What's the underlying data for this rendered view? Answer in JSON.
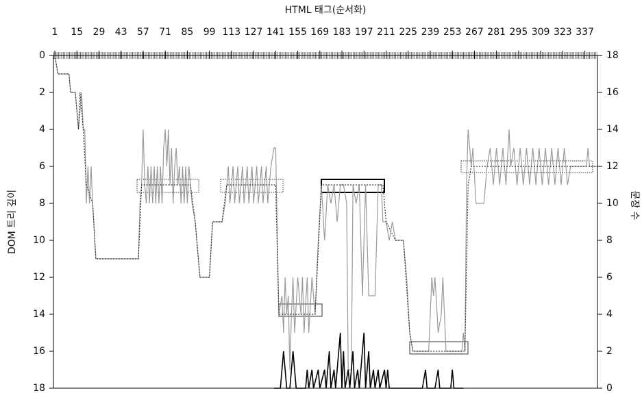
{
  "chart_data": {
    "type": "line",
    "title": "HTML 태그(순서화)",
    "y_label": "DOM 트리 깊이",
    "y2_label": "문장 수",
    "xlim": [
      1,
      345
    ],
    "xticks": [
      1,
      15,
      29,
      43,
      57,
      71,
      85,
      99,
      113,
      127,
      141,
      155,
      169,
      183,
      197,
      211,
      225,
      239,
      253,
      267,
      281,
      295,
      309,
      323,
      337
    ],
    "ylim": [
      0,
      18
    ],
    "y_inverted": true,
    "yticks": [
      0,
      2,
      4,
      6,
      8,
      10,
      12,
      14,
      16,
      18
    ],
    "y2lim": [
      0,
      18
    ],
    "y2ticks": [
      0,
      2,
      4,
      6,
      8,
      10,
      12,
      14,
      16,
      18
    ],
    "series": [
      {
        "color": "#999999",
        "dash": "none",
        "x": [
          1,
          3,
          10,
          11,
          14,
          16,
          17,
          18,
          19,
          20,
          21,
          22,
          23,
          24,
          25,
          27,
          54,
          55,
          56,
          57,
          58,
          59,
          60,
          61,
          62,
          63,
          64,
          65,
          66,
          67,
          68,
          69,
          70,
          71,
          72,
          73,
          74,
          75,
          76,
          77,
          78,
          79,
          80,
          81,
          82,
          83,
          84,
          85,
          86,
          88,
          90,
          93,
          99,
          101,
          107,
          109,
          111,
          112,
          114,
          115,
          117,
          118,
          120,
          121,
          123,
          124,
          126,
          127,
          129,
          130,
          132,
          133,
          135,
          136,
          138,
          140,
          141,
          143,
          145,
          146,
          147,
          148,
          149,
          150,
          151,
          152,
          153,
          155,
          157,
          158,
          159,
          161,
          162,
          164,
          166,
          168,
          170,
          172,
          174,
          176,
          178,
          180,
          182,
          184,
          186,
          187,
          189,
          190,
          192,
          194,
          196,
          198,
          200,
          204,
          206,
          208,
          209,
          211,
          213,
          215,
          217,
          222,
          224,
          226,
          228,
          238,
          240,
          241,
          242,
          244,
          246,
          247,
          249,
          259,
          260,
          261,
          262,
          263,
          264,
          265,
          266,
          268,
          273,
          275,
          277,
          279,
          281,
          283,
          285,
          287,
          289,
          290,
          292,
          294,
          296,
          298,
          300,
          302,
          304,
          306,
          308,
          310,
          312,
          314,
          316,
          318,
          320,
          322,
          324,
          326,
          328,
          338,
          339,
          340,
          345
        ],
        "values": [
          0,
          1,
          1,
          2,
          2,
          4,
          3,
          2,
          4,
          4,
          8,
          6,
          8,
          6,
          8,
          11,
          11,
          8,
          7,
          4,
          7,
          8,
          6,
          8,
          6,
          8,
          6,
          8,
          6,
          8,
          6,
          8,
          5,
          4,
          6,
          4,
          7,
          5,
          8,
          6,
          5,
          7,
          6,
          8,
          6,
          8,
          6,
          8,
          6,
          8,
          9,
          12,
          12,
          9,
          9,
          8,
          6,
          8,
          6,
          8,
          6,
          8,
          6,
          8,
          6,
          8,
          6,
          8,
          6,
          8,
          6,
          8,
          6,
          8,
          6,
          5,
          5,
          14,
          13,
          15,
          12,
          14,
          13,
          17,
          14,
          12,
          15,
          12,
          14,
          12,
          15,
          12,
          15,
          12,
          14,
          10,
          7,
          10,
          7,
          8,
          7,
          9,
          7,
          7,
          8,
          17,
          17,
          7,
          8,
          7,
          13,
          7,
          13,
          13,
          7,
          7,
          9,
          9,
          10,
          9,
          10,
          10,
          12,
          15,
          16,
          16,
          12,
          13,
          12,
          15,
          14,
          12,
          16,
          16,
          15,
          16,
          7,
          4,
          5,
          6,
          5,
          8,
          8,
          6,
          5,
          7,
          5,
          7,
          5,
          7,
          4,
          6,
          5,
          7,
          5,
          7,
          5,
          7,
          5,
          7,
          5,
          7,
          5,
          7,
          5,
          7,
          5,
          7,
          5,
          7,
          6,
          6,
          5,
          6,
          6
        ]
      },
      {
        "color": "#333333",
        "dash": "2 2",
        "x": [
          1,
          3,
          10,
          11,
          14,
          16,
          17,
          19,
          21,
          25,
          27,
          54,
          56,
          87,
          90,
          93,
          99,
          101,
          107,
          110,
          141,
          143,
          166,
          170,
          209,
          211,
          217,
          222,
          226,
          228,
          261,
          263,
          265,
          345
        ],
        "values": [
          0,
          1,
          1,
          2,
          2,
          4,
          2,
          4,
          7,
          8,
          11,
          11,
          7,
          7,
          9,
          12,
          12,
          9,
          9,
          7,
          7,
          14,
          14,
          7,
          7,
          9,
          10,
          10,
          15,
          16,
          16,
          7,
          6,
          6
        ]
      },
      {
        "color": "#000000",
        "dash": "none",
        "axis": "y2",
        "x": [
          140,
          144,
          146,
          148,
          150,
          152,
          154,
          160,
          161,
          162,
          164,
          165,
          168,
          169,
          172,
          173,
          175,
          176,
          178,
          179,
          182,
          183,
          184,
          185,
          187,
          188,
          190,
          191,
          193,
          194,
          196,
          197,
          198,
          200,
          201,
          203,
          204,
          206,
          207,
          210,
          211,
          212,
          213,
          215,
          234,
          236,
          237,
          242,
          244,
          245,
          252,
          253,
          254,
          260
        ],
        "values": [
          0,
          0,
          2,
          0,
          0,
          2,
          0,
          0,
          1,
          0,
          1,
          0,
          1,
          0,
          1,
          0,
          2,
          0,
          1,
          0,
          3,
          0,
          2,
          0,
          1,
          0,
          2,
          0,
          1,
          0,
          2,
          3,
          0,
          2,
          0,
          1,
          0,
          1,
          0,
          1,
          0,
          1,
          0,
          0,
          0,
          1,
          0,
          0,
          1,
          0,
          0,
          1,
          0,
          0
        ]
      }
    ]
  }
}
